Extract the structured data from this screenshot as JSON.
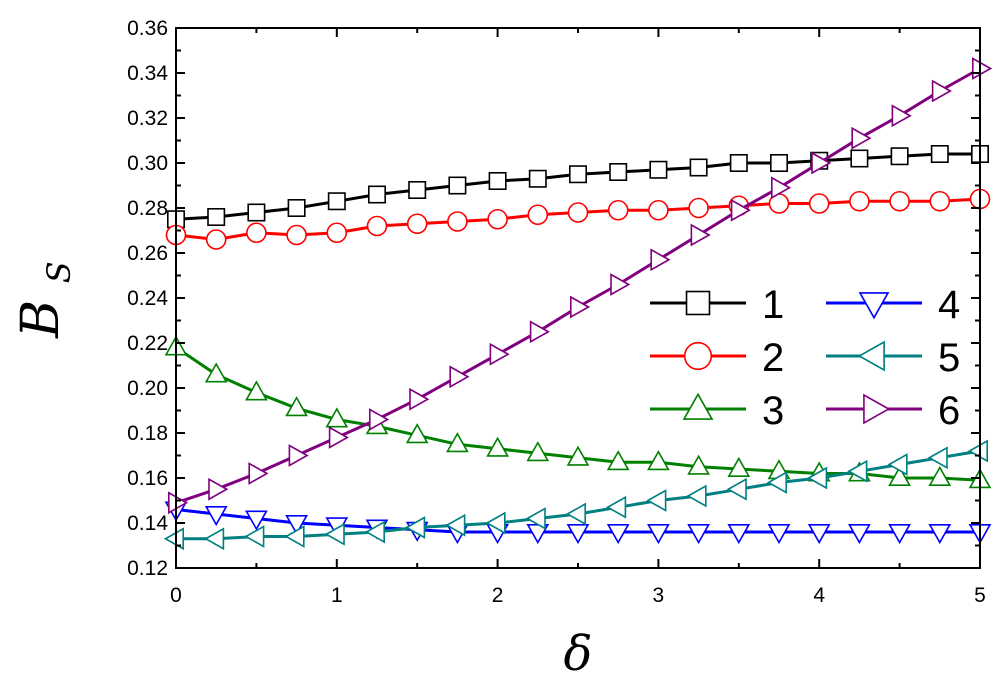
{
  "chart_data": {
    "type": "line",
    "title": "",
    "xlabel": "δ",
    "ylabel_main": "B",
    "ylabel_sub": "S",
    "xlim": [
      0,
      5
    ],
    "ylim": [
      0.12,
      0.36
    ],
    "xticks": [
      0,
      1,
      2,
      3,
      4,
      5
    ],
    "xtick_labels": [
      "0",
      "1",
      "2",
      "3",
      "4",
      "5"
    ],
    "yticks": [
      0.12,
      0.14,
      0.16,
      0.18,
      0.2,
      0.22,
      0.24,
      0.26,
      0.28,
      0.3,
      0.32,
      0.34,
      0.36
    ],
    "ytick_labels": [
      "0.12",
      "0.14",
      "0.16",
      "0.18",
      "0.20",
      "0.22",
      "0.24",
      "0.26",
      "0.28",
      "0.30",
      "0.32",
      "0.34",
      "0.36"
    ],
    "grid": false,
    "legend_position": "center-right",
    "x": [
      0,
      0.25,
      0.5,
      0.75,
      1,
      1.25,
      1.5,
      1.75,
      2,
      2.25,
      2.5,
      2.75,
      3,
      3.25,
      3.5,
      3.75,
      4,
      4.25,
      4.5,
      4.75,
      5
    ],
    "series": [
      {
        "name": "1",
        "color": "#000000",
        "marker": "square",
        "values": [
          0.275,
          0.276,
          0.278,
          0.28,
          0.283,
          0.286,
          0.288,
          0.29,
          0.292,
          0.293,
          0.295,
          0.296,
          0.297,
          0.298,
          0.3,
          0.3,
          0.301,
          0.302,
          0.303,
          0.304,
          0.304
        ]
      },
      {
        "name": "2",
        "color": "#ff0000",
        "marker": "circle",
        "values": [
          0.268,
          0.266,
          0.269,
          0.268,
          0.269,
          0.272,
          0.273,
          0.274,
          0.275,
          0.277,
          0.278,
          0.279,
          0.279,
          0.28,
          0.281,
          0.282,
          0.282,
          0.283,
          0.283,
          0.283,
          0.284
        ]
      },
      {
        "name": "3",
        "color": "#008000",
        "marker": "triangle-up",
        "values": [
          0.218,
          0.206,
          0.198,
          0.191,
          0.186,
          0.183,
          0.179,
          0.175,
          0.173,
          0.171,
          0.169,
          0.167,
          0.167,
          0.165,
          0.164,
          0.163,
          0.162,
          0.162,
          0.16,
          0.16,
          0.159
        ]
      },
      {
        "name": "4",
        "color": "#0000ff",
        "marker": "triangle-down",
        "values": [
          0.146,
          0.144,
          0.142,
          0.14,
          0.139,
          0.138,
          0.137,
          0.136,
          0.136,
          0.136,
          0.136,
          0.136,
          0.136,
          0.136,
          0.136,
          0.136,
          0.136,
          0.136,
          0.136,
          0.136,
          0.136
        ]
      },
      {
        "name": "5",
        "color": "#008080",
        "marker": "triangle-left",
        "values": [
          0.133,
          0.133,
          0.134,
          0.134,
          0.135,
          0.136,
          0.138,
          0.139,
          0.14,
          0.142,
          0.144,
          0.147,
          0.15,
          0.152,
          0.155,
          0.158,
          0.16,
          0.163,
          0.166,
          0.169,
          0.172
        ]
      },
      {
        "name": "6",
        "color": "#800080",
        "marker": "triangle-right",
        "values": [
          0.149,
          0.155,
          0.162,
          0.17,
          0.178,
          0.186,
          0.195,
          0.205,
          0.215,
          0.225,
          0.236,
          0.246,
          0.257,
          0.268,
          0.279,
          0.289,
          0.3,
          0.311,
          0.321,
          0.332,
          0.342
        ]
      }
    ]
  }
}
